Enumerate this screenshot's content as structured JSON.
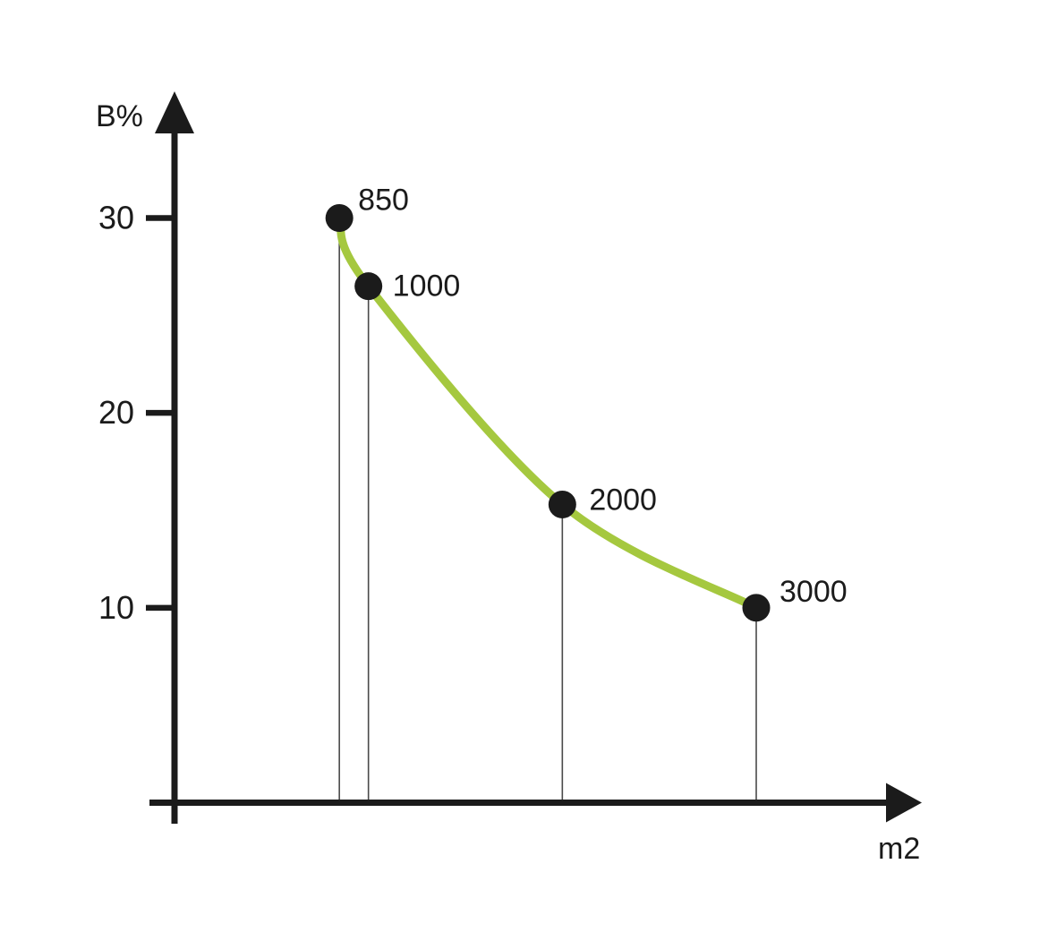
{
  "chart_data": {
    "type": "line",
    "title": "",
    "ylabel": "B%",
    "xlabel": "m2",
    "x": [
      850,
      1000,
      2000,
      3000
    ],
    "y": [
      30,
      26.5,
      15.3,
      10
    ],
    "point_labels": [
      "850",
      "1000",
      "2000",
      "3000"
    ],
    "y_ticks": [
      10,
      20,
      30
    ],
    "x_ticks": [],
    "xlim": [
      0,
      3870
    ],
    "ylim": [
      0,
      36.5
    ],
    "grid": false,
    "legend_position": "none",
    "colors": {
      "curve": "#a5c83f",
      "points": "#1b1b1b",
      "axis": "#1b1b1b",
      "drop_lines": "#4a4a4a",
      "text": "#1b1b1b",
      "background": "#ffffff"
    }
  }
}
